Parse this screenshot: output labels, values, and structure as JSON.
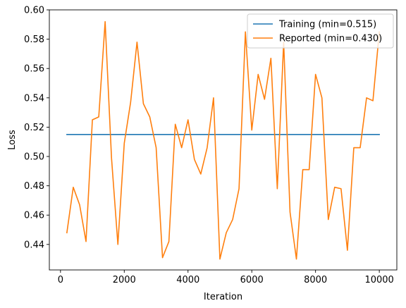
{
  "chart_data": {
    "type": "line",
    "title": "",
    "xlabel": "Iteration",
    "ylabel": "Loss",
    "xlim": [
      -350,
      10550
    ],
    "ylim": [
      0.4226,
      0.6
    ],
    "xticks": [
      0,
      2000,
      4000,
      6000,
      8000,
      10000
    ],
    "yticks": [
      0.44,
      0.46,
      0.48,
      0.5,
      0.52,
      0.54,
      0.56,
      0.58,
      0.6
    ],
    "xtick_labels": [
      "0",
      "2000",
      "4000",
      "6000",
      "8000",
      "10000"
    ],
    "ytick_labels": [
      "0.44",
      "0.46",
      "0.48",
      "0.50",
      "0.52",
      "0.54",
      "0.56",
      "0.58",
      "0.60"
    ],
    "grid": false,
    "legend_position": "top-right",
    "series": [
      {
        "name": "Training (min=0.515)",
        "color": "#1f77b4",
        "x": [
          200,
          10000
        ],
        "y": [
          0.515,
          0.515
        ]
      },
      {
        "name": "Reported (min=0.430)",
        "color": "#ff7f0e",
        "x": [
          200,
          400,
          600,
          800,
          1000,
          1200,
          1400,
          1600,
          1800,
          2000,
          2200,
          2400,
          2600,
          2800,
          3000,
          3200,
          3400,
          3600,
          3800,
          4000,
          4200,
          4400,
          4600,
          4800,
          5000,
          5200,
          5400,
          5600,
          5800,
          6000,
          6200,
          6400,
          6600,
          6800,
          7000,
          7200,
          7400,
          7600,
          7800,
          8000,
          8200,
          8400,
          8600,
          8800,
          9000,
          9200,
          9400,
          9600,
          9800,
          10000
        ],
        "y": [
          0.448,
          0.479,
          0.467,
          0.442,
          0.525,
          0.527,
          0.592,
          0.499,
          0.44,
          0.509,
          0.537,
          0.578,
          0.536,
          0.527,
          0.506,
          0.431,
          0.442,
          0.522,
          0.506,
          0.525,
          0.498,
          0.488,
          0.506,
          0.54,
          0.43,
          0.448,
          0.457,
          0.478,
          0.585,
          0.518,
          0.556,
          0.539,
          0.567,
          0.478,
          0.578,
          0.462,
          0.43,
          0.491,
          0.491,
          0.556,
          0.54,
          0.457,
          0.479,
          0.478,
          0.436,
          0.506,
          0.506,
          0.54,
          0.538,
          0.585
        ]
      }
    ]
  }
}
